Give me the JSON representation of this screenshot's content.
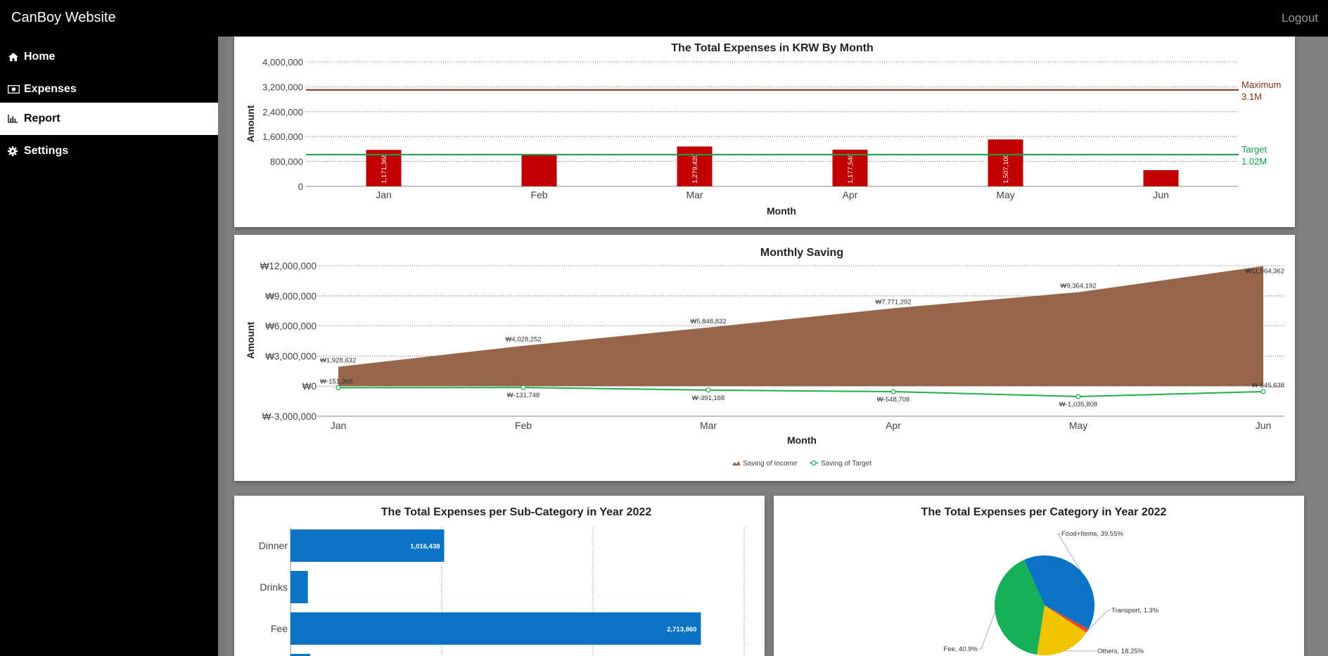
{
  "app": {
    "title": "CanBoy Website",
    "logout_label": "Logout"
  },
  "sidebar": {
    "items": [
      {
        "label": "Home",
        "icon": "home-icon"
      },
      {
        "label": "Expenses",
        "icon": "money-icon"
      },
      {
        "label": "Report",
        "icon": "chart-icon",
        "active": true
      },
      {
        "label": "Settings",
        "icon": "gear-icon"
      }
    ]
  },
  "colors": {
    "bar_red": "#C00000",
    "maximum_line": "#8B2E1A",
    "target_line": "#12A04A",
    "area_brown": "#96654A",
    "saving_target_line": "#1FAF4B",
    "blue": "#0A73C4",
    "pie_green": "#16AF5A",
    "pie_yellow": "#F2C300",
    "pie_red": "#E8442E",
    "pie_orange": "#F28C28"
  },
  "chart_data": [
    {
      "type": "bar",
      "title": "The Total Expenses in KRW By Month",
      "xlabel": "Month",
      "ylabel": "Amount",
      "categories": [
        "Jan",
        "Feb",
        "Mar",
        "Apr",
        "May",
        "Jun"
      ],
      "values": [
        1171368,
        1000000,
        1279420,
        1177540,
        1507100,
        520000
      ],
      "value_labels": [
        "1,171,368",
        "",
        "1,279,420",
        "1,177,540",
        "1,507,100",
        ""
      ],
      "ylim": [
        0,
        4000000
      ],
      "yticks": [
        0,
        800000,
        1600000,
        2400000,
        3200000,
        4000000
      ],
      "ytick_labels": [
        "0",
        "800,000",
        "1,600,000",
        "2,400,000",
        "3,200,000",
        "4,000,000"
      ],
      "reference_lines": [
        {
          "name": "Maximum",
          "value": 3100000,
          "label_line1": "Maximum",
          "label_line2": "3.1M"
        },
        {
          "name": "Target",
          "value": 1020000,
          "label_line1": "Target",
          "label_line2": "1.02M"
        }
      ],
      "grid": true
    },
    {
      "type": "area",
      "title": "Monthly Saving",
      "xlabel": "Month",
      "ylabel": "Amount",
      "categories": [
        "Jan",
        "Feb",
        "Mar",
        "Apr",
        "May",
        "Jun"
      ],
      "ylim": [
        -3000000,
        12000000
      ],
      "yticks": [
        -3000000,
        0,
        3000000,
        6000000,
        9000000,
        12000000
      ],
      "ytick_labels": [
        "₩-3,000,000",
        "₩0",
        "₩3,000,000",
        "₩6,000,000",
        "₩9,000,000",
        "₩12,000,000"
      ],
      "series": [
        {
          "name": "Saving of Income",
          "kind": "area",
          "values": [
            1928632,
            4028252,
            5848832,
            7771292,
            9364192,
            11964362
          ],
          "labels": [
            "₩1,928,632",
            "₩4,028,252",
            "₩5,848,832",
            "₩7,771,292",
            "₩9,364,192",
            "₩11,964,362"
          ]
        },
        {
          "name": "Saving of Target",
          "kind": "line",
          "values": [
            -151368,
            -131748,
            -391168,
            -548708,
            -1035808,
            -545638
          ],
          "labels": [
            "₩-151,368",
            "₩-131,748",
            "₩-391,168",
            "₩-548,708",
            "₩-1,035,808",
            "₩-545,638"
          ]
        }
      ],
      "legend": [
        "Saving of Income",
        "Saving of Target"
      ],
      "legend_position": "bottom",
      "grid": true
    },
    {
      "type": "bar",
      "orientation": "horizontal",
      "title": "The Total Expenses per Sub-Category in Year 2022",
      "categories": [
        "Dinner",
        "Drinks",
        "Fee",
        ""
      ],
      "values": [
        1016438,
        115000,
        2713860,
        130000
      ],
      "value_labels": [
        "1,016,438",
        "",
        "2,713,860",
        ""
      ],
      "xlim": [
        0,
        3000000
      ],
      "grid": true
    },
    {
      "type": "pie",
      "title": "The Total Expenses per Category in Year 2022",
      "slices": [
        {
          "label": "Food+Items",
          "value": 39.55,
          "display": "Food+Items, 39.55%",
          "color": "#0A73C4"
        },
        {
          "label": "Transport",
          "value": 1.3,
          "display": "Transport, 1.3%",
          "color": "#E8442E"
        },
        {
          "label": "Others",
          "value": 18.25,
          "display": "Others, 18.25%",
          "color": "#F2C300"
        },
        {
          "label": "Fee",
          "value": 40.9,
          "display": "Fee, 40.9%",
          "color": "#16AF5A"
        }
      ]
    }
  ]
}
